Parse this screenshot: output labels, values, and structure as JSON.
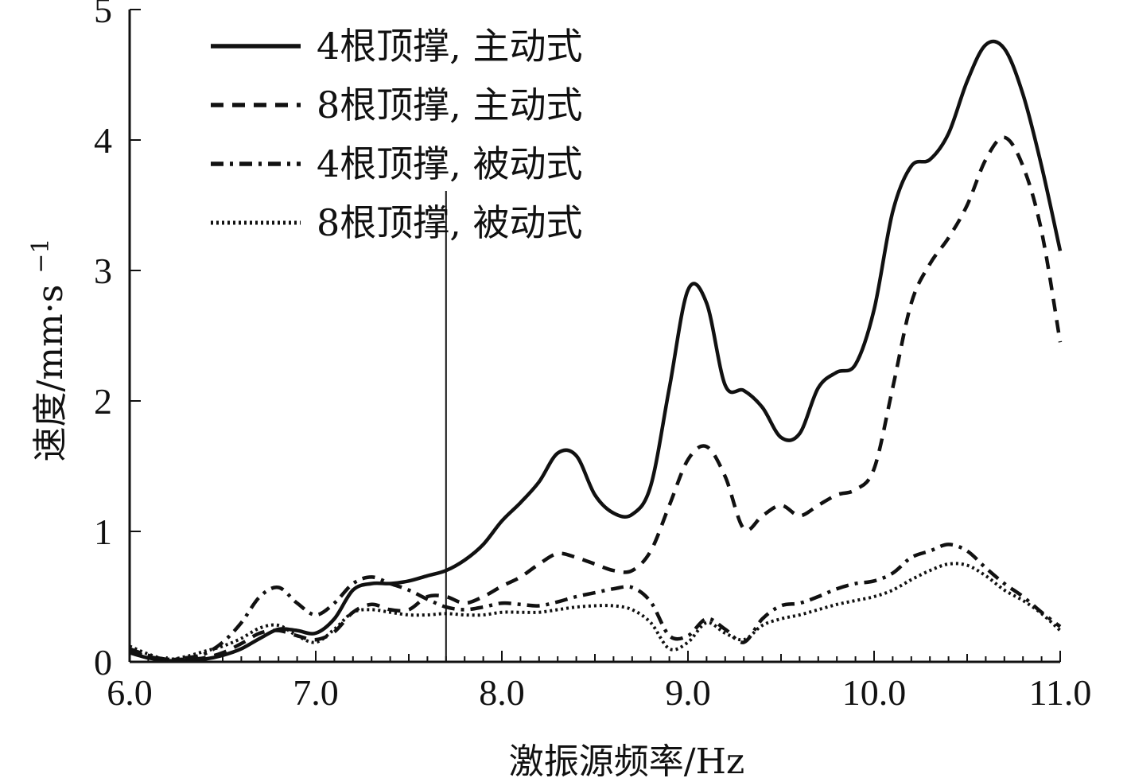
{
  "chart_data": {
    "type": "line",
    "xlabel": "激振源频率/Hz",
    "ylabel": "速度/mm·s",
    "ylabel_sup": "−1",
    "xlim": [
      6.0,
      11.0
    ],
    "ylim": [
      0,
      5
    ],
    "xticks": [
      "6.0",
      "7.0",
      "8.0",
      "9.0",
      "10.0",
      "11.0"
    ],
    "yticks": [
      "0",
      "1",
      "2",
      "3",
      "4",
      "5"
    ],
    "grid": false,
    "legend_position": "top-left",
    "reference_line_x": 7.7,
    "series": [
      {
        "name": "4根顶撑, 主动式",
        "style": "solid",
        "x": [
          6.0,
          6.1,
          6.2,
          6.3,
          6.4,
          6.5,
          6.6,
          6.7,
          6.8,
          6.9,
          7.0,
          7.1,
          7.2,
          7.3,
          7.4,
          7.5,
          7.6,
          7.7,
          7.8,
          7.9,
          8.0,
          8.1,
          8.2,
          8.3,
          8.4,
          8.5,
          8.6,
          8.7,
          8.8,
          8.9,
          9.0,
          9.1,
          9.2,
          9.3,
          9.4,
          9.5,
          9.6,
          9.7,
          9.8,
          9.9,
          10.0,
          10.1,
          10.2,
          10.3,
          10.4,
          10.5,
          10.6,
          10.7,
          10.8,
          10.9,
          11.0
        ],
        "y": [
          0.07,
          0.03,
          0.01,
          0.01,
          0.02,
          0.05,
          0.1,
          0.18,
          0.25,
          0.24,
          0.22,
          0.33,
          0.55,
          0.6,
          0.6,
          0.62,
          0.66,
          0.7,
          0.78,
          0.9,
          1.08,
          1.22,
          1.38,
          1.6,
          1.58,
          1.28,
          1.14,
          1.13,
          1.35,
          2.1,
          2.85,
          2.75,
          2.12,
          2.08,
          1.95,
          1.72,
          1.75,
          2.1,
          2.22,
          2.28,
          2.7,
          3.45,
          3.8,
          3.85,
          4.05,
          4.45,
          4.73,
          4.7,
          4.35,
          3.8,
          3.15
        ]
      },
      {
        "name": "8根顶撑, 主动式",
        "style": "dashed",
        "x": [
          6.0,
          6.1,
          6.2,
          6.3,
          6.4,
          6.5,
          6.6,
          6.7,
          6.8,
          6.9,
          7.0,
          7.1,
          7.2,
          7.3,
          7.4,
          7.5,
          7.6,
          7.7,
          7.8,
          7.9,
          8.0,
          8.1,
          8.2,
          8.3,
          8.4,
          8.5,
          8.6,
          8.7,
          8.8,
          8.9,
          9.0,
          9.1,
          9.2,
          9.3,
          9.4,
          9.5,
          9.6,
          9.7,
          9.8,
          9.9,
          10.0,
          10.1,
          10.2,
          10.3,
          10.4,
          10.5,
          10.6,
          10.7,
          10.8,
          10.9,
          11.0
        ],
        "y": [
          0.08,
          0.04,
          0.02,
          0.02,
          0.03,
          0.07,
          0.14,
          0.22,
          0.24,
          0.2,
          0.17,
          0.23,
          0.38,
          0.44,
          0.4,
          0.4,
          0.5,
          0.5,
          0.45,
          0.5,
          0.58,
          0.65,
          0.75,
          0.83,
          0.8,
          0.75,
          0.7,
          0.7,
          0.85,
          1.2,
          1.55,
          1.65,
          1.42,
          1.02,
          1.12,
          1.2,
          1.12,
          1.2,
          1.28,
          1.32,
          1.48,
          2.1,
          2.75,
          3.05,
          3.25,
          3.5,
          3.85,
          4.02,
          3.8,
          3.3,
          2.45
        ]
      },
      {
        "name": "4根顶撑, 被动式",
        "style": "dashdot",
        "x": [
          6.0,
          6.1,
          6.2,
          6.3,
          6.4,
          6.5,
          6.6,
          6.7,
          6.8,
          6.9,
          7.0,
          7.1,
          7.2,
          7.3,
          7.4,
          7.5,
          7.6,
          7.7,
          7.8,
          7.9,
          8.0,
          8.1,
          8.2,
          8.3,
          8.4,
          8.5,
          8.6,
          8.7,
          8.8,
          8.9,
          9.0,
          9.1,
          9.2,
          9.3,
          9.4,
          9.5,
          9.6,
          9.7,
          9.8,
          9.9,
          10.0,
          10.1,
          10.2,
          10.3,
          10.4,
          10.5,
          10.6,
          10.7,
          10.8,
          10.9,
          11.0
        ],
        "y": [
          0.1,
          0.05,
          0.02,
          0.03,
          0.06,
          0.15,
          0.3,
          0.5,
          0.57,
          0.45,
          0.36,
          0.45,
          0.6,
          0.65,
          0.6,
          0.55,
          0.48,
          0.42,
          0.4,
          0.42,
          0.45,
          0.44,
          0.43,
          0.46,
          0.5,
          0.53,
          0.56,
          0.57,
          0.46,
          0.2,
          0.2,
          0.33,
          0.25,
          0.15,
          0.33,
          0.43,
          0.45,
          0.5,
          0.56,
          0.6,
          0.62,
          0.68,
          0.8,
          0.85,
          0.9,
          0.85,
          0.72,
          0.6,
          0.5,
          0.38,
          0.27
        ]
      },
      {
        "name": "8根顶撑, 被动式",
        "style": "dotted",
        "x": [
          6.0,
          6.1,
          6.2,
          6.3,
          6.4,
          6.5,
          6.6,
          6.7,
          6.8,
          6.9,
          7.0,
          7.1,
          7.2,
          7.3,
          7.4,
          7.5,
          7.6,
          7.7,
          7.8,
          7.9,
          8.0,
          8.1,
          8.2,
          8.3,
          8.4,
          8.5,
          8.6,
          8.7,
          8.8,
          8.9,
          9.0,
          9.1,
          9.2,
          9.3,
          9.4,
          9.5,
          9.6,
          9.7,
          9.8,
          9.9,
          10.0,
          10.1,
          10.2,
          10.3,
          10.4,
          10.5,
          10.6,
          10.7,
          10.8,
          10.9,
          11.0
        ],
        "y": [
          0.12,
          0.06,
          0.02,
          0.04,
          0.08,
          0.12,
          0.18,
          0.26,
          0.28,
          0.2,
          0.15,
          0.25,
          0.38,
          0.4,
          0.38,
          0.36,
          0.36,
          0.37,
          0.36,
          0.36,
          0.38,
          0.38,
          0.38,
          0.4,
          0.42,
          0.43,
          0.43,
          0.4,
          0.3,
          0.1,
          0.15,
          0.3,
          0.22,
          0.17,
          0.28,
          0.33,
          0.36,
          0.4,
          0.44,
          0.47,
          0.5,
          0.55,
          0.63,
          0.7,
          0.75,
          0.74,
          0.66,
          0.55,
          0.47,
          0.37,
          0.24
        ]
      }
    ]
  }
}
